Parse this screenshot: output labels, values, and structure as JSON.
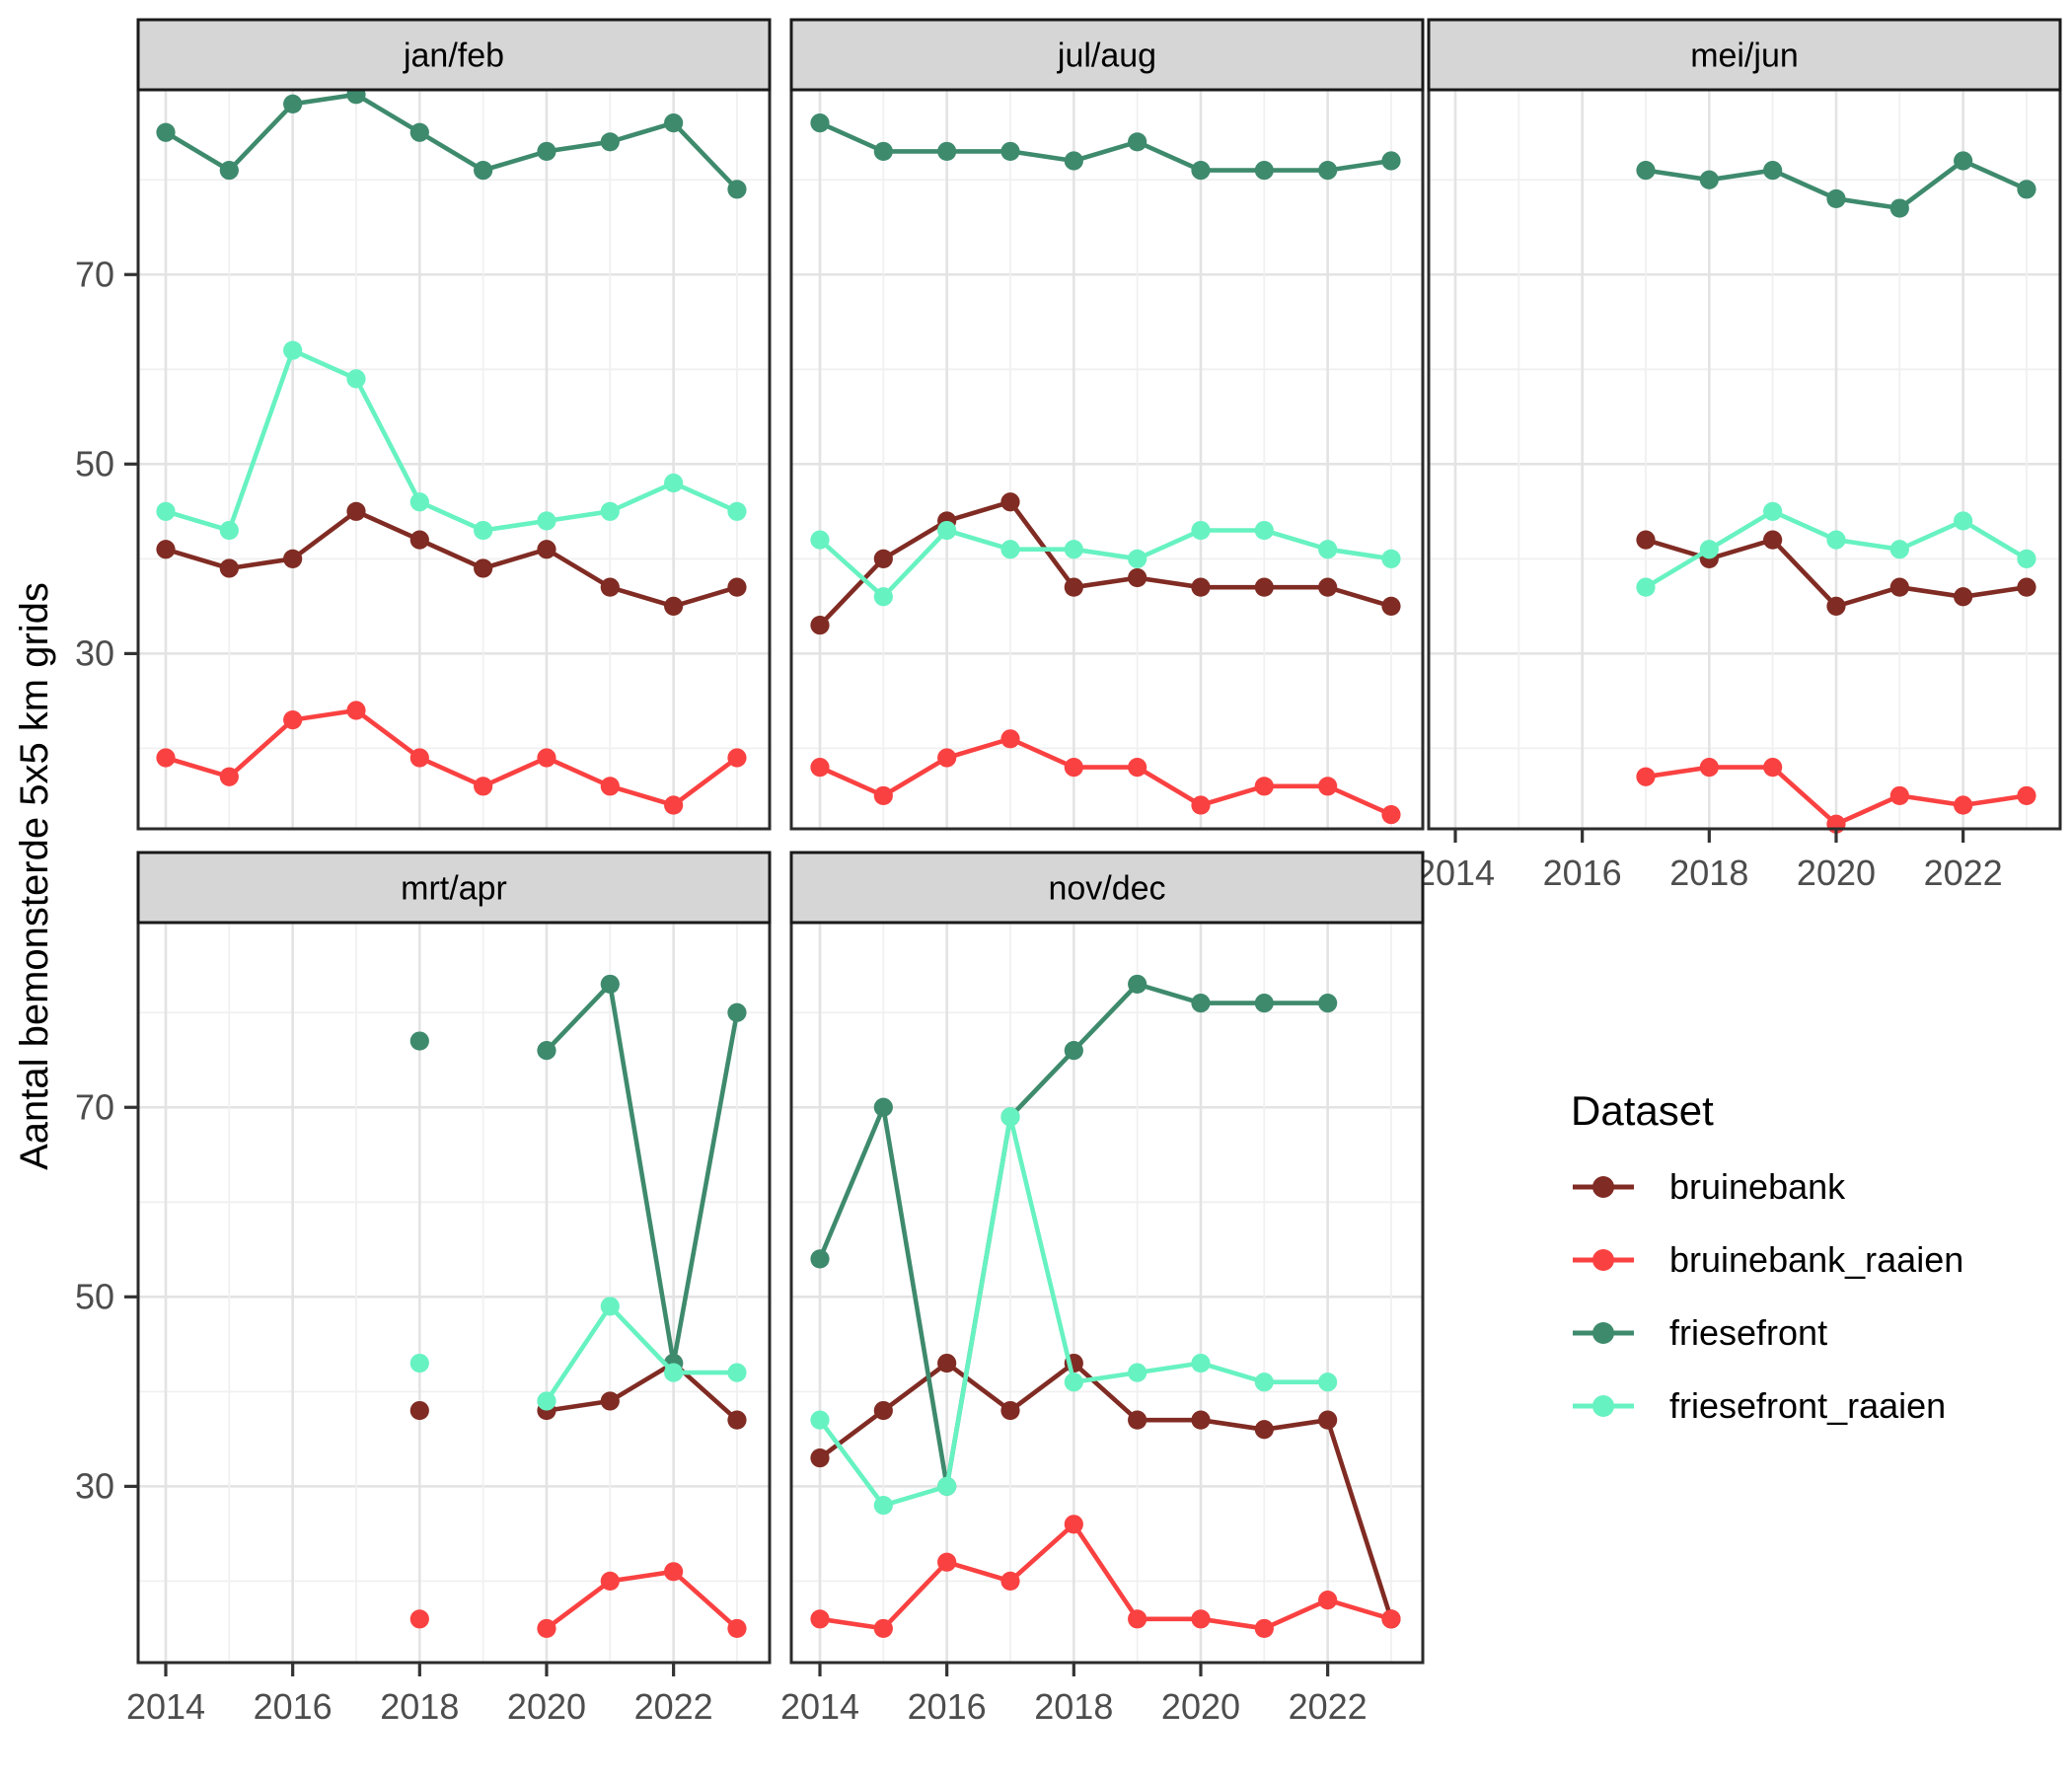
{
  "chart_data": {
    "type": "line",
    "title": "",
    "xlabel": "",
    "ylabel": "Aantal bemonsterde 5x5 km grids",
    "x_ticks": [
      2014,
      2016,
      2018,
      2020,
      2022
    ],
    "x_tick_labels": [
      "2014",
      "2016",
      "2018",
      "2020",
      "2022"
    ],
    "y_ticks": [
      70,
      50,
      30
    ],
    "y_tick_labels": [
      "70",
      "50",
      "30"
    ],
    "x_range": [
      2013.55,
      2023.45
    ],
    "y_range": [
      11.4,
      89.5
    ],
    "grid": true,
    "facet_layout": "2 rows x 3 cols, facets: jan/feb, jul/aug, mei/jun / mrt/apr, nov/dec",
    "legend_position": "right-middle",
    "legend": {
      "title": "Dataset",
      "entries": [
        {
          "label": "bruinebank",
          "color": "#802B23"
        },
        {
          "label": "bruinebank_raaien",
          "color": "#FA4141"
        },
        {
          "label": "friesefront",
          "color": "#3E8A6D"
        },
        {
          "label": "friesefront_raaien",
          "color": "#67F2C2"
        }
      ]
    },
    "colors": {
      "bruinebank": "#802B23",
      "bruinebank_raaien": "#FA4141",
      "friesefront": "#3E8A6D",
      "friesefront_raaien": "#67F2C2"
    },
    "panels": [
      {
        "label": "jan/feb",
        "row": 0,
        "col": 0,
        "series": [
          {
            "name": "bruinebank",
            "years": [
              2014,
              2015,
              2016,
              2017,
              2018,
              2019,
              2020,
              2021,
              2022,
              2023
            ],
            "values": [
              41,
              39,
              40,
              45,
              42,
              39,
              41,
              37,
              35,
              37
            ]
          },
          {
            "name": "bruinebank_raaien",
            "years": [
              2014,
              2015,
              2016,
              2017,
              2018,
              2019,
              2020,
              2021,
              2022,
              2023
            ],
            "values": [
              19,
              17,
              23,
              24,
              19,
              16,
              19,
              16,
              14,
              19
            ]
          },
          {
            "name": "friesefront",
            "years": [
              2014,
              2015,
              2016,
              2017,
              2018,
              2019,
              2020,
              2021,
              2022,
              2023
            ],
            "values": [
              85,
              81,
              88,
              89,
              85,
              81,
              83,
              84,
              86,
              79
            ]
          },
          {
            "name": "friesefront_raaien",
            "years": [
              2014,
              2015,
              2016,
              2017,
              2018,
              2019,
              2020,
              2021,
              2022,
              2023
            ],
            "values": [
              45,
              43,
              62,
              59,
              46,
              43,
              44,
              45,
              48,
              45
            ]
          }
        ]
      },
      {
        "label": "jul/aug",
        "row": 0,
        "col": 1,
        "series": [
          {
            "name": "bruinebank",
            "years": [
              2014,
              2015,
              2016,
              2017,
              2018,
              2019,
              2020,
              2021,
              2022,
              2023
            ],
            "values": [
              33,
              40,
              44,
              46,
              37,
              38,
              37,
              37,
              37,
              35
            ]
          },
          {
            "name": "bruinebank_raaien",
            "years": [
              2014,
              2015,
              2016,
              2017,
              2018,
              2019,
              2020,
              2021,
              2022,
              2023
            ],
            "values": [
              18,
              15,
              19,
              21,
              18,
              18,
              14,
              16,
              16,
              13
            ]
          },
          {
            "name": "friesefront",
            "years": [
              2014,
              2015,
              2016,
              2017,
              2018,
              2019,
              2020,
              2021,
              2022,
              2023
            ],
            "values": [
              86,
              83,
              83,
              83,
              82,
              84,
              81,
              81,
              81,
              82
            ]
          },
          {
            "name": "friesefront_raaien",
            "years": [
              2014,
              2015,
              2016,
              2017,
              2018,
              2019,
              2020,
              2021,
              2022,
              2023
            ],
            "values": [
              42,
              36,
              43,
              41,
              41,
              40,
              43,
              43,
              41,
              40
            ]
          }
        ]
      },
      {
        "label": "mei/jun",
        "row": 0,
        "col": 2,
        "series": [
          {
            "name": "bruinebank",
            "years": [
              2017,
              2018,
              2019,
              2020,
              2021,
              2022,
              2023
            ],
            "values": [
              42,
              40,
              42,
              35,
              37,
              36,
              37
            ]
          },
          {
            "name": "bruinebank_raaien",
            "years": [
              2017,
              2018,
              2019,
              2020,
              2021,
              2022,
              2023
            ],
            "values": [
              17,
              18,
              18,
              12,
              15,
              14,
              15
            ]
          },
          {
            "name": "friesefront",
            "years": [
              2017,
              2018,
              2019,
              2020,
              2021,
              2022,
              2023
            ],
            "values": [
              81,
              80,
              81,
              78,
              77,
              82,
              79
            ]
          },
          {
            "name": "friesefront_raaien",
            "years": [
              2017,
              2018,
              2019,
              2020,
              2021,
              2022,
              2023
            ],
            "values": [
              37,
              41,
              45,
              42,
              41,
              44,
              40
            ]
          }
        ]
      },
      {
        "label": "mrt/apr",
        "row": 1,
        "col": 0,
        "series": [
          {
            "name": "bruinebank",
            "years": [
              2018,
              2020,
              2021,
              2022,
              2023
            ],
            "values": [
              38,
              38,
              39,
              43,
              37
            ]
          },
          {
            "name": "bruinebank_raaien",
            "years": [
              2018,
              2020,
              2021,
              2022,
              2023
            ],
            "values": [
              16,
              15,
              20,
              21,
              15
            ]
          },
          {
            "name": "friesefront",
            "years": [
              2018,
              2020,
              2021,
              2022,
              2023
            ],
            "values": [
              77,
              76,
              83,
              43,
              80
            ]
          },
          {
            "name": "friesefront_raaien",
            "years": [
              2018,
              2020,
              2021,
              2022,
              2023
            ],
            "values": [
              43,
              39,
              49,
              42,
              42
            ]
          }
        ]
      },
      {
        "label": "nov/dec",
        "row": 1,
        "col": 1,
        "series": [
          {
            "name": "bruinebank",
            "years": [
              2014,
              2015,
              2016,
              2017,
              2018,
              2019,
              2020,
              2021,
              2022,
              2023
            ],
            "values": [
              33,
              38,
              43,
              38,
              43,
              37,
              37,
              36,
              37,
              16
            ]
          },
          {
            "name": "bruinebank_raaien",
            "years": [
              2014,
              2015,
              2016,
              2017,
              2018,
              2019,
              2020,
              2021,
              2022,
              2023
            ],
            "values": [
              16,
              15,
              22,
              20,
              26,
              16,
              16,
              15,
              18,
              16
            ]
          },
          {
            "name": "friesefront",
            "years": [
              2014,
              2015,
              2016,
              2017,
              2018,
              2019,
              2020,
              2021,
              2022
            ],
            "values": [
              54,
              70,
              30,
              69,
              76,
              83,
              81,
              81,
              81
            ]
          },
          {
            "name": "friesefront_raaien",
            "years": [
              2014,
              2015,
              2016,
              2017,
              2018,
              2019,
              2020,
              2021,
              2022
            ],
            "values": [
              37,
              28,
              30,
              69,
              41,
              42,
              43,
              41,
              41
            ]
          }
        ]
      }
    ],
    "style_colors": {
      "strip_bg": "#D6D6D6",
      "strip_border": "#1A1A1A",
      "panel_border": "#2B2B2B",
      "grid_major": "#E3E3E3",
      "grid_minor": "#F0F0F0",
      "tick_label": "#4D4D4D",
      "tick_mark": "#333333",
      "text": "#000000"
    }
  }
}
